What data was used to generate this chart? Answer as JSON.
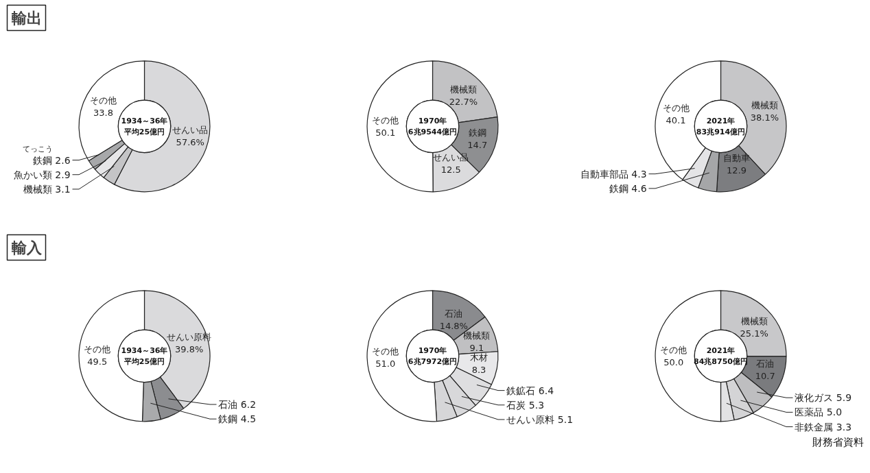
{
  "chart_data": [
    {
      "type": "donut",
      "title": "輸出",
      "subtitle": "1934～36年平均25億円",
      "categories": [
        "せんい品",
        "機械類",
        "魚かい類",
        "鉄鋼",
        "その他"
      ],
      "values": [
        57.6,
        3.1,
        2.9,
        2.6,
        33.8
      ],
      "value_labels": [
        "57.6%",
        "3.1",
        "2.9",
        "2.6",
        "33.8"
      ],
      "colors": [
        "#d9d9db",
        "#c4c4c6",
        "#e6e6e8",
        "#a7a8aa",
        "#ffffff"
      ],
      "annotations": [
        {
          "text": "てっこう",
          "x": "鉄鋼"
        }
      ]
    },
    {
      "type": "donut",
      "subtitle": "1970年6兆9544億円",
      "categories": [
        "機械類",
        "鉄鋼",
        "せんい品",
        "その他"
      ],
      "values": [
        22.7,
        14.7,
        12.5,
        50.1
      ],
      "value_labels": [
        "22.7%",
        "14.7",
        "12.5",
        "50.1"
      ],
      "colors": [
        "#c2c2c4",
        "#8e8f91",
        "#dbdbdd",
        "#ffffff"
      ]
    },
    {
      "type": "donut",
      "subtitle": "2021年83兆914億円",
      "categories": [
        "機械類",
        "自動車",
        "鉄鋼",
        "自動車部品",
        "その他"
      ],
      "values": [
        38.1,
        12.9,
        4.6,
        4.3,
        40.1
      ],
      "value_labels": [
        "38.1%",
        "12.9",
        "4.6",
        "4.3",
        "40.1"
      ],
      "colors": [
        "#c6c6c8",
        "#7c7d80",
        "#a5a6a8",
        "#e4e4e6",
        "#ffffff"
      ]
    },
    {
      "type": "donut",
      "title": "輸入",
      "subtitle": "1934～36年平均25億円",
      "categories": [
        "せんい原料",
        "石油",
        "鉄鋼",
        "その他"
      ],
      "values": [
        39.8,
        6.2,
        4.5,
        49.5
      ],
      "value_labels": [
        "39.8%",
        "6.2",
        "4.5",
        "49.5"
      ],
      "colors": [
        "#dadadc",
        "#8c8d90",
        "#a9aaac",
        "#ffffff"
      ]
    },
    {
      "type": "donut",
      "subtitle": "1970年6兆7972億円",
      "categories": [
        "石油",
        "機械類",
        "木材",
        "鉄鉱石",
        "石炭",
        "せんい原料",
        "その他"
      ],
      "values": [
        14.8,
        9.1,
        8.3,
        6.4,
        5.3,
        5.1,
        51.0
      ],
      "value_labels": [
        "14.8%",
        "9.1",
        "8.3",
        "6.4",
        "5.3",
        "5.1",
        "51.0"
      ],
      "colors": [
        "#8a8b8e",
        "#c0c0c2",
        "#e8e8ea",
        "#dedee0",
        "#d8d8da",
        "#d6d6d8",
        "#ffffff"
      ]
    },
    {
      "type": "donut",
      "subtitle": "2021年84兆8750億円",
      "categories": [
        "機械類",
        "石油",
        "液化ガス",
        "医薬品",
        "非鉄金属",
        "その他"
      ],
      "values": [
        25.1,
        10.7,
        5.9,
        5.0,
        3.3,
        50.0
      ],
      "value_labels": [
        "25.1%",
        "10.7",
        "5.9",
        "5.0",
        "3.3",
        "50.0"
      ],
      "colors": [
        "#c8c8ca",
        "#7a7b7e",
        "#bebec0",
        "#d4d4d6",
        "#e2e2e4",
        "#ffffff"
      ],
      "annotations": [
        "財務省資料"
      ]
    }
  ]
}
